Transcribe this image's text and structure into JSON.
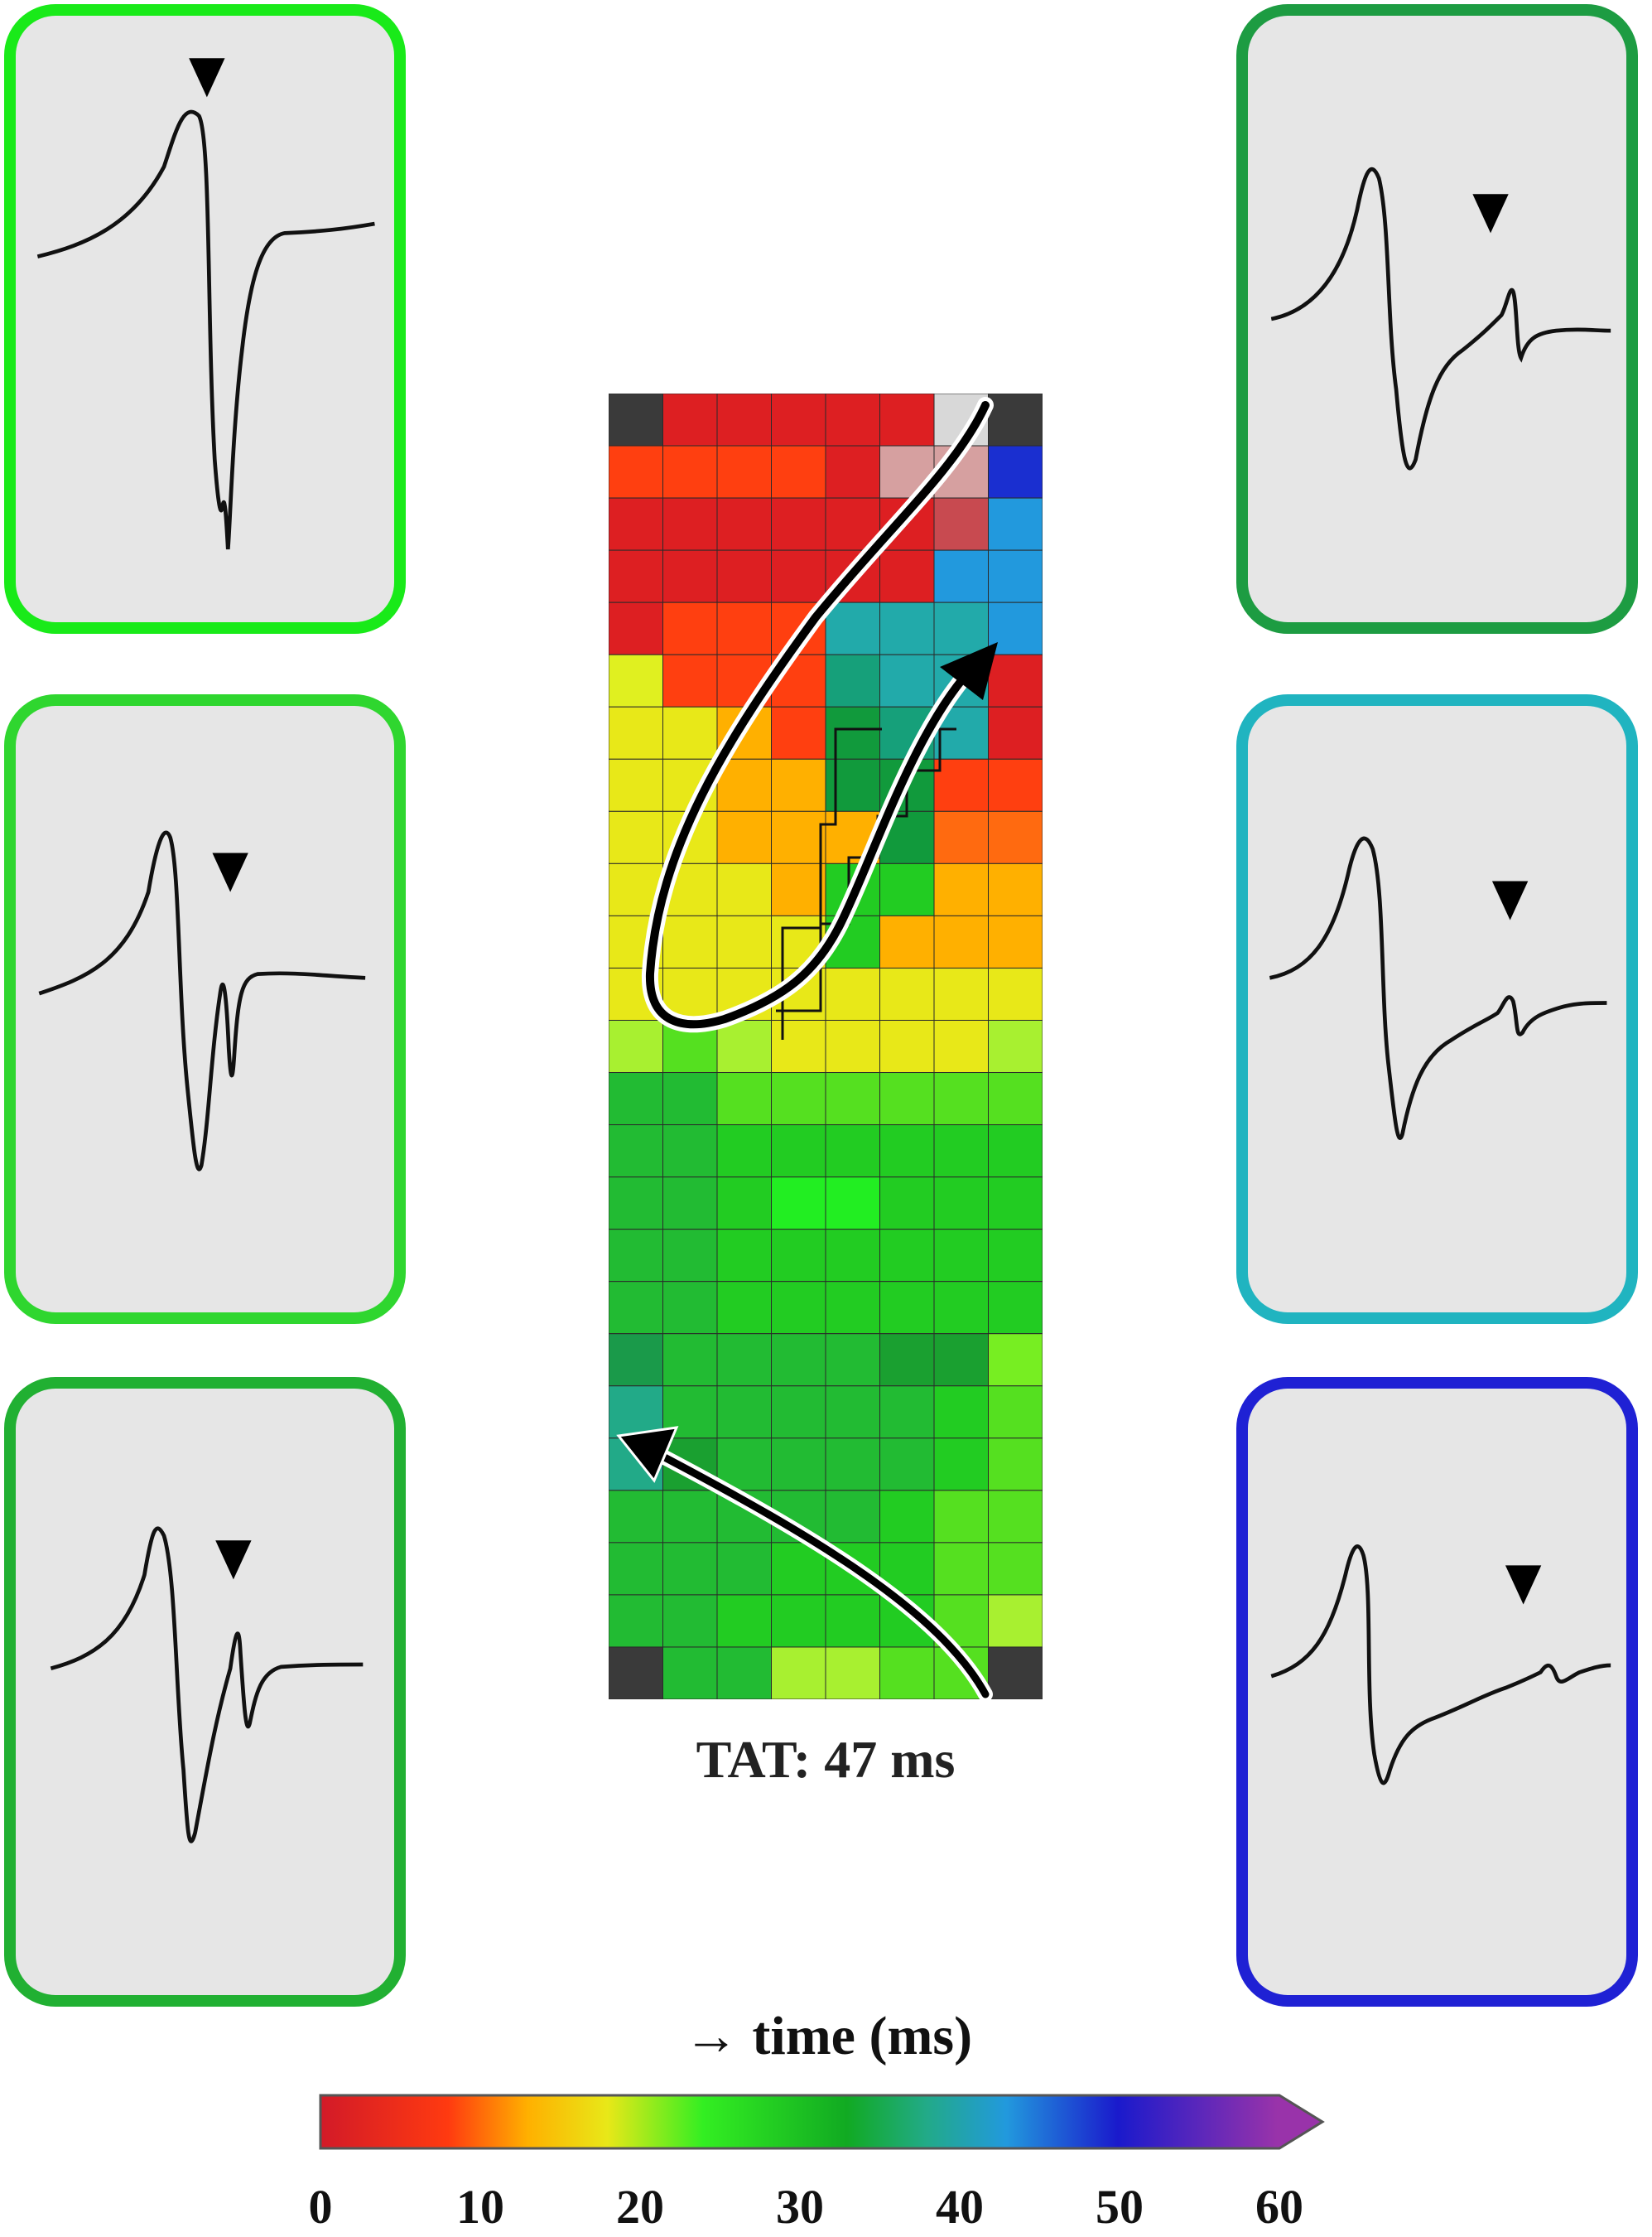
{
  "tat_label": "TAT: 47 ms",
  "colorbar": {
    "title": "→ time (ms)",
    "ticks": [
      "0",
      "10",
      "20",
      "30",
      "40",
      "50",
      "60"
    ],
    "min": 0,
    "max": 60,
    "gradient": [
      {
        "t": 0,
        "color": "#d21a28"
      },
      {
        "t": 8,
        "color": "#ff3a10"
      },
      {
        "t": 13,
        "color": "#ffb000"
      },
      {
        "t": 18,
        "color": "#e8e818"
      },
      {
        "t": 24,
        "color": "#33ee22"
      },
      {
        "t": 33,
        "color": "#11aa22"
      },
      {
        "t": 38,
        "color": "#22aa88"
      },
      {
        "t": 43,
        "color": "#2299dd"
      },
      {
        "t": 50,
        "color": "#1a1acc"
      },
      {
        "t": 60,
        "color": "#9933aa"
      }
    ]
  },
  "colors": {
    "panel_left_1": "#19ea19",
    "panel_left_2": "#2fd62f",
    "panel_left_3": "#21b032",
    "panel_right_1": "#1d9c42",
    "panel_right_2": "#20b4c0",
    "panel_right_3": "#1f21d4",
    "panel_fill": "#e6e6e6",
    "map_corner": "#3a3a3a"
  },
  "map_grid": [
    "#3a3a3a #dd1f22 #dd1f22 #dd1f22 #dd1f22 #dd1f22 #d8d8d8 #3a3a3a",
    "#ff3f10 #ff3f10 #ff3f10 #ff3f10 #dd1f22 #d6a0a0 #d6a0a0 #1a2fd0",
    "#dd1f22 #dd1f22 #dd1f22 #dd1f22 #dd1f22 #dd1f22 #c84a50 #2299dd",
    "#dd1f22 #dd1f22 #dd1f22 #dd1f22 #dd1f22 #dd1f22 #2299dd #2299dd",
    "#dd1f22 #ff3f10 #ff3f10 #ff3f10 #22aaaa #22aaaa #22aaaa #2299dd",
    "#e0f020 #ff3f10 #ff3f10 #ff3f10 #16a07a #22aaaa #22aaaa #dd1f22",
    "#e8e818 #e8e818 #ffb000 #ff3f10 #119a3c #16a07a #22aaaa #dd1f22",
    "#e8e818 #e8e818 #ffb000 #ffb000 #119a3c #119a3c #ff3f10 #ff3f10",
    "#e8e818 #e8e818 #ffb000 #ffb000 #ffb000 #119a3c #ff6a10 #ff6a10",
    "#e8e818 #e8e818 #e8e818 #ffb000 #22cc22 #22cc22 #ffb000 #ffb000",
    "#e8e818 #e8e818 #e8e818 #e8e818 #22cc22 #ffb000 #ffb000 #ffb000",
    "#e8e818 #e8e818 #e8e818 #e8e818 #e8e818 #e8e818 #e8e818 #e8e818",
    "#a8f030 #55e020 #a8f030 #e8e818 #e8e818 #e8e818 #e8e818 #a8f030",
    "#22bb33 #22bb33 #55e020 #55e020 #55e020 #55e020 #55e020 #55e020",
    "#22bb33 #22bb33 #22cc22 #22cc22 #22cc22 #22cc22 #22cc22 #22cc22",
    "#22bb33 #22bb33 #22cc22 #22ee22 #22ee22 #22cc22 #22cc22 #22cc22",
    "#22bb33 #22bb33 #22cc22 #22cc22 #22cc22 #22cc22 #22cc22 #22cc22",
    "#22bb33 #22bb33 #22cc22 #22cc22 #22cc22 #22cc22 #22cc22 #22cc22",
    "#1a9a4a #22bb33 #22bb33 #22bb33 #22bb33 #1aa030 #1aa030 #77ee22",
    "#22aa88 #22bb33 #22bb33 #22bb33 #22bb33 #22bb33 #22cc22 #55e020",
    "#22aa88 #1aa030 #22bb33 #22bb33 #22bb33 #22bb33 #22cc22 #55e020",
    "#22bb33 #22bb33 #22bb33 #22bb33 #22bb33 #22cc22 #55e020 #55e020",
    "#22bb33 #22bb33 #22bb33 #22cc22 #22cc22 #22cc22 #55e020 #55e020",
    "#22bb33 #22bb33 #22cc22 #22cc22 #22cc22 #22cc22 #55e020 #a8f030",
    "#3a3a3a #22bb33 #22bb33 #a8f030 #a8f030 #55e020 #55e020 #3a3a3a"
  ]
}
